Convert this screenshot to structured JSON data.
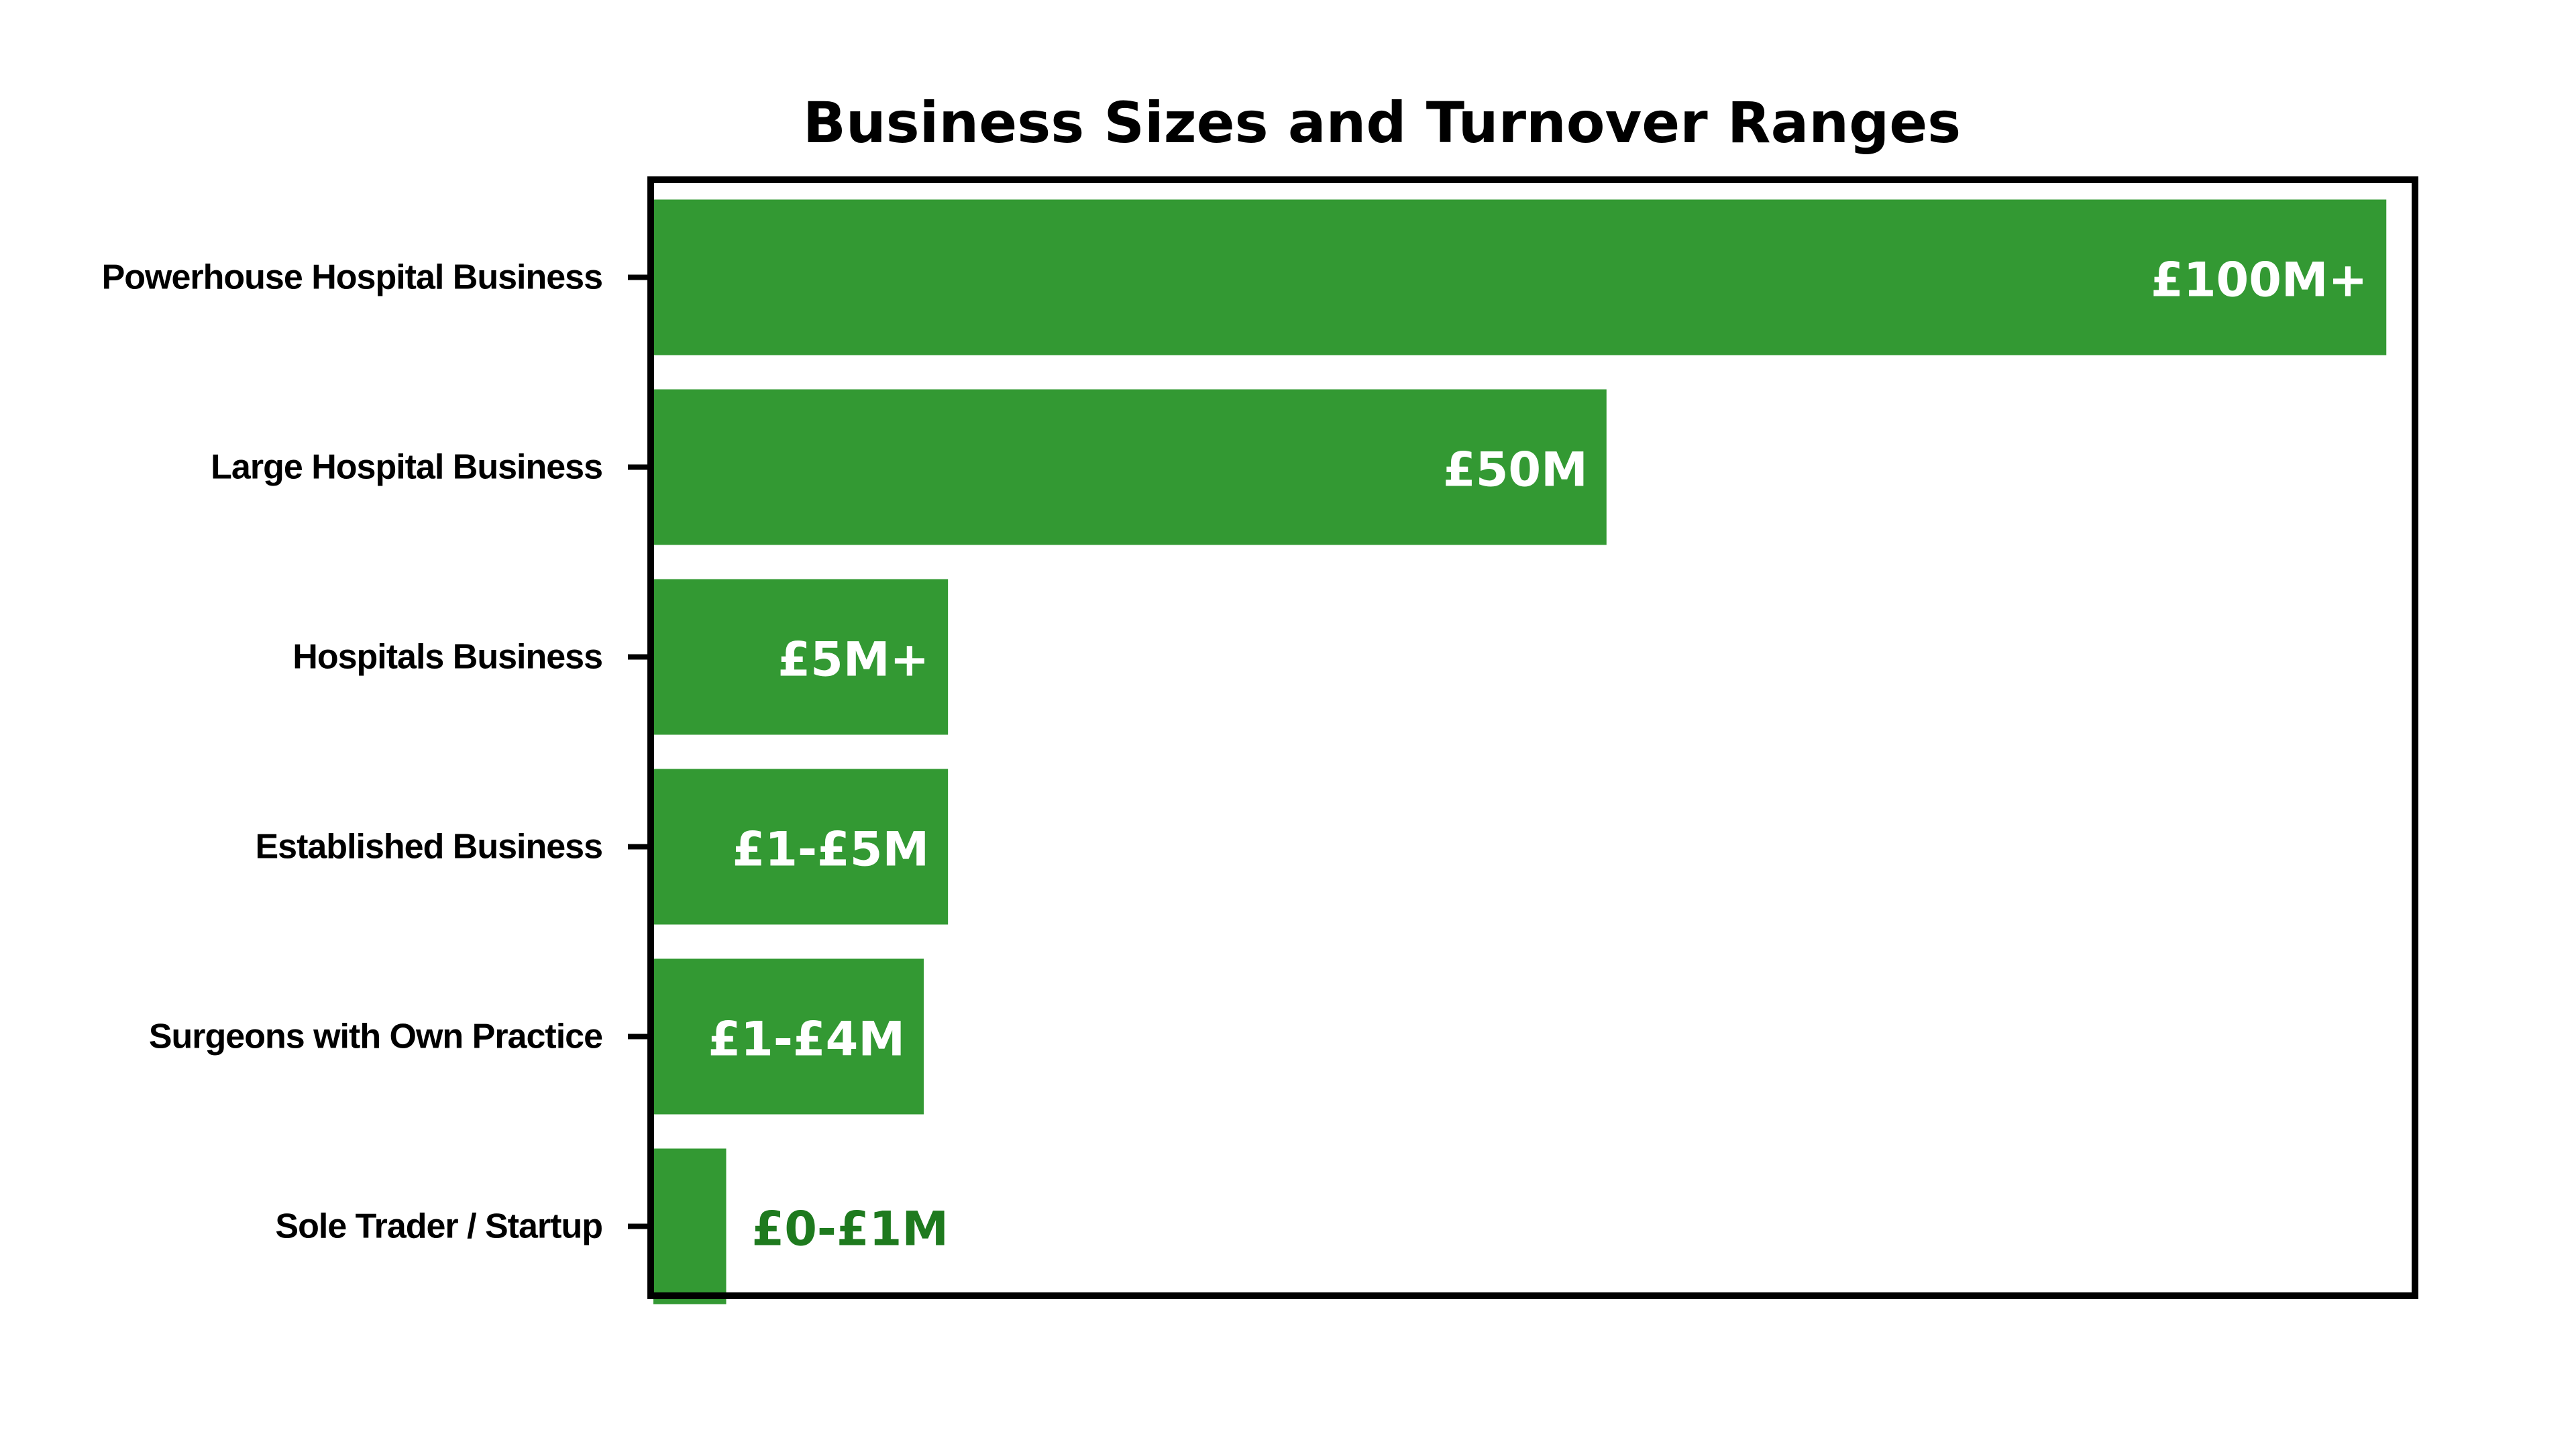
{
  "chart_data": {
    "type": "bar",
    "orientation": "horizontal",
    "title": "Business Sizes and Turnover Ranges",
    "xlabel": "",
    "ylabel": "",
    "grid": false,
    "legend": "none",
    "categories": [
      "Powerhouse Hospital Business",
      "Large Hospital Business",
      "Hospitals Business",
      "Established Business",
      "Surgeons with Own Practice",
      "Sole Trader / Startup"
    ],
    "values": [
      100,
      55,
      17,
      17,
      15.6,
      4.2
    ],
    "value_labels": [
      "£100M+",
      "£50M",
      "£5M+",
      "£1-£5M",
      "£1-£4M",
      "£0-£1M"
    ],
    "xlim": [
      0,
      101.5
    ],
    "colors": {
      "bar": "#339933",
      "label_inside": "#ffffff",
      "label_outside": "#1e7a1e",
      "frame": "#000000"
    }
  }
}
